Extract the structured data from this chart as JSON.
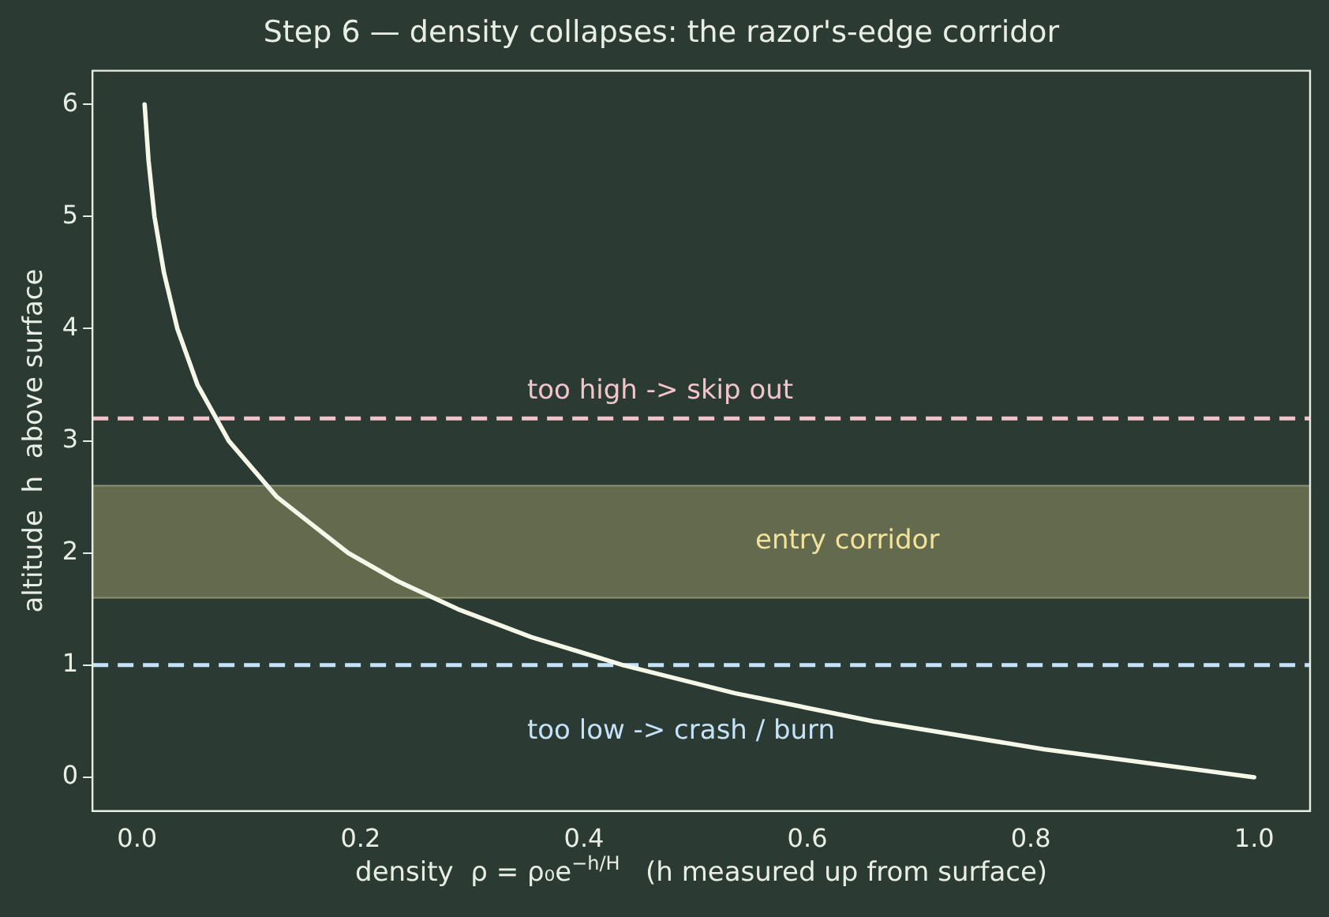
{
  "chart_data": {
    "type": "line",
    "title": "Step 6 — density collapses: the razor's-edge corridor",
    "xlabel": "density  ρ = ρ₀e$^{−h/H}$   (h measured up from surface)",
    "ylabel": "altitude  h  above surface",
    "series": [
      {
        "color": "#f5f8e8",
        "x": [
          1.0,
          0.812,
          0.659,
          0.535,
          0.435,
          0.353,
          0.287,
          0.233,
          0.189,
          0.125,
          0.082,
          0.054,
          0.036,
          0.024,
          0.0155,
          0.0102,
          0.0067
        ],
        "values": [
          0,
          0.25,
          0.5,
          0.75,
          1,
          1.25,
          1.5,
          1.75,
          2,
          2.5,
          3,
          3.5,
          4,
          4.5,
          5,
          5.5,
          6
        ]
      }
    ],
    "xlim": [
      -0.04,
      1.05
    ],
    "ylim": [
      -0.3,
      6.3
    ],
    "xticks": [
      {
        "value": 0,
        "label": "0.0"
      },
      {
        "value": 0.2,
        "label": "0.2"
      },
      {
        "value": 0.4,
        "label": "0.4"
      },
      {
        "value": 0.6,
        "label": "0.6"
      },
      {
        "value": 0.8,
        "label": "0.8"
      },
      {
        "value": 1,
        "label": "1.0"
      }
    ],
    "yticks": [
      0,
      1,
      2,
      3,
      4,
      5,
      6
    ],
    "ref_lines": [
      {
        "axis": "y",
        "value": 3.2,
        "label": "too high -> skip out",
        "color": "#f4c4cc",
        "line_style": "dashed"
      },
      {
        "axis": "y",
        "value": 1.0,
        "label": "too low -> crash / burn",
        "color": "#c4e2f8",
        "line_style": "dashed"
      }
    ],
    "bands": [
      {
        "axis": "y",
        "from": 1.6,
        "to": 2.6,
        "label": "entry corridor",
        "color": "#636a4e"
      }
    ],
    "grid": false,
    "legend": false,
    "marker": "none",
    "line_style": "solid"
  }
}
